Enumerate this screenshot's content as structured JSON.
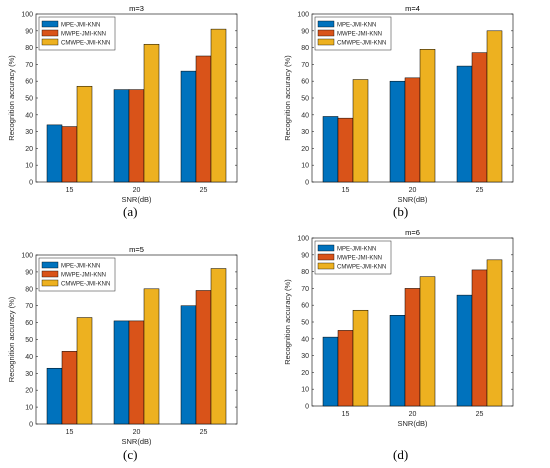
{
  "figure": {
    "series_colors": [
      "#0072BD",
      "#D95319",
      "#EDB120"
    ]
  },
  "chart_data": [
    {
      "type": "bar",
      "title": "m=3",
      "xlabel": "SNR(dB)",
      "ylabel": "Recognition accuracy (%)",
      "categories": [
        "15",
        "20",
        "25"
      ],
      "ylim": [
        0,
        100
      ],
      "yticks": [
        "0",
        "10",
        "20",
        "30",
        "40",
        "50",
        "60",
        "70",
        "80",
        "90",
        "100"
      ],
      "grid": false,
      "legend_position": "top-left",
      "series": [
        {
          "name": "MPE-JMI-KNN",
          "values": [
            34,
            55,
            66
          ]
        },
        {
          "name": "MWPE-JMI-KNN",
          "values": [
            33,
            55,
            75
          ]
        },
        {
          "name": "CMWPE-JMI-KNN",
          "values": [
            57,
            82,
            91
          ]
        }
      ],
      "panel_label": "(a)"
    },
    {
      "type": "bar",
      "title": "m=4",
      "xlabel": "SNR(dB)",
      "ylabel": "Recognition accuracy (%)",
      "categories": [
        "15",
        "20",
        "25"
      ],
      "ylim": [
        0,
        100
      ],
      "yticks": [
        "0",
        "10",
        "20",
        "30",
        "40",
        "50",
        "60",
        "70",
        "80",
        "90",
        "100"
      ],
      "grid": false,
      "legend_position": "top-left",
      "series": [
        {
          "name": "MPE-JMI-KNN",
          "values": [
            39,
            60,
            69
          ]
        },
        {
          "name": "MWPE-JMI-KNN",
          "values": [
            38,
            62,
            77
          ]
        },
        {
          "name": "CMWPE-JMI-KNN",
          "values": [
            61,
            79,
            90
          ]
        }
      ],
      "panel_label": "(b)"
    },
    {
      "type": "bar",
      "title": "m=5",
      "xlabel": "SNR(dB)",
      "ylabel": "Recognition accuracy (%)",
      "categories": [
        "15",
        "20",
        "25"
      ],
      "ylim": [
        0,
        100
      ],
      "yticks": [
        "0",
        "10",
        "20",
        "30",
        "40",
        "50",
        "60",
        "70",
        "80",
        "90",
        "100"
      ],
      "grid": false,
      "legend_position": "top-left",
      "series": [
        {
          "name": "MPE-JMI-KNN",
          "values": [
            33,
            61,
            70
          ]
        },
        {
          "name": "MWPE-JMI-KNN",
          "values": [
            43,
            61,
            79
          ]
        },
        {
          "name": "CMWPE-JMI-KNN",
          "values": [
            63,
            80,
            92
          ]
        }
      ],
      "panel_label": "(c)"
    },
    {
      "type": "bar",
      "title": "m=6",
      "xlabel": "SNR(dB)",
      "ylabel": "Recognition accuracy (%)",
      "categories": [
        "15",
        "20",
        "25"
      ],
      "ylim": [
        0,
        100
      ],
      "yticks": [
        "0",
        "10",
        "20",
        "30",
        "40",
        "50",
        "60",
        "70",
        "80",
        "90",
        "100"
      ],
      "grid": false,
      "legend_position": "top-left",
      "series": [
        {
          "name": "MPE-JMI-KNN",
          "values": [
            41,
            54,
            66
          ]
        },
        {
          "name": "MWPE-JMI-KNN",
          "values": [
            45,
            70,
            81
          ]
        },
        {
          "name": "CMWPE-JMI-KNN",
          "values": [
            57,
            77,
            87
          ]
        }
      ],
      "panel_label": "(d)"
    }
  ]
}
